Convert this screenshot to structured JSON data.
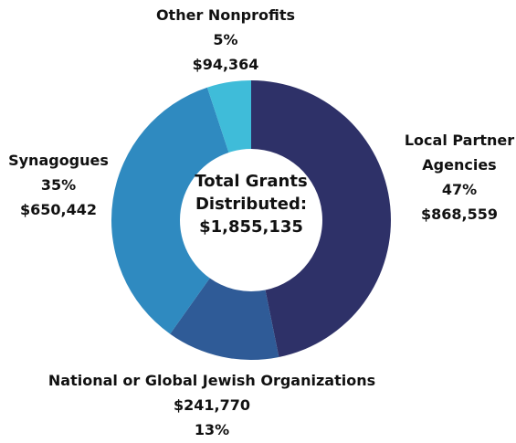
{
  "chart_data": {
    "type": "donut",
    "categories": [
      "Local Partner Agencies",
      "National or Global Jewish Organizations",
      "Synagogues",
      "Other Nonprofits"
    ],
    "values": [
      868559,
      241770,
      650442,
      94364
    ],
    "value_labels": [
      "$868,559",
      "$241,770",
      "$650,442",
      "$94,364"
    ],
    "percent_labels": [
      "47%",
      "13%",
      "35%",
      "5%"
    ],
    "colors": [
      "#2e3168",
      "#2f5b97",
      "#2f8ac0",
      "#3fbcd9"
    ],
    "center_title": "Total Grants Distributed:",
    "center_total": "$1,855,135"
  }
}
